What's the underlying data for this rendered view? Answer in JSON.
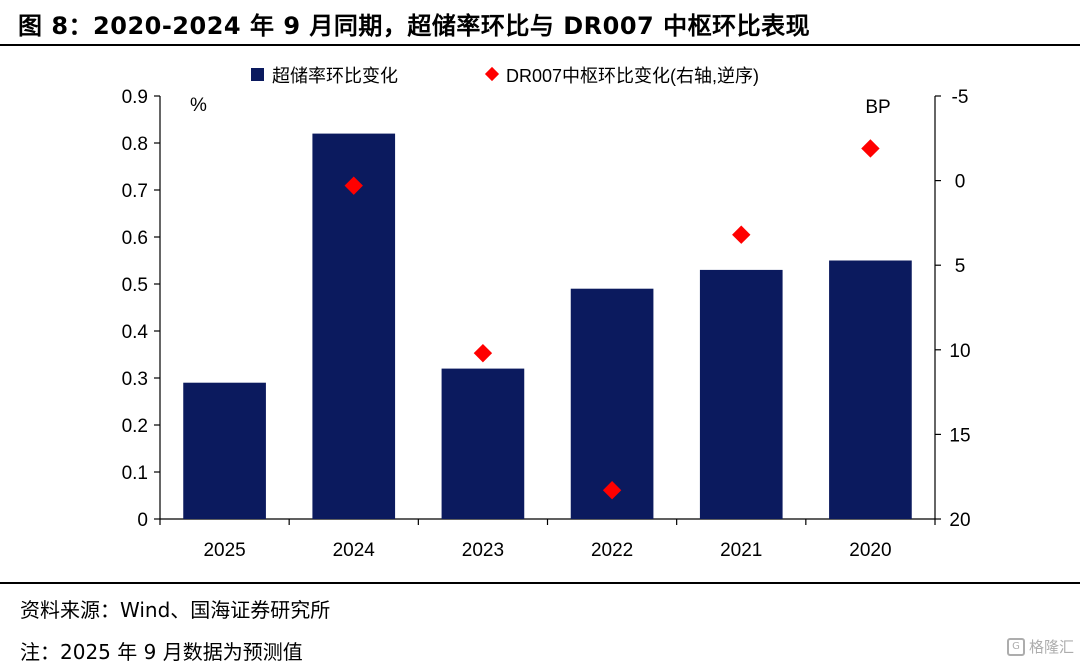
{
  "header": {
    "title": "图 8：2020-2024 年 9 月同期，超储率环比与 DR007 中枢环比表现"
  },
  "footer": {
    "source": "资料来源：Wind、国海证券研究所",
    "note": "注：2025 年 9 月数据为预测值",
    "watermark": "格隆汇"
  },
  "chart_data": {
    "type": "bar",
    "categories": [
      "2025",
      "2024",
      "2023",
      "2022",
      "2021",
      "2020"
    ],
    "series": [
      {
        "name": "超储率环比变化",
        "kind": "bar",
        "axis": "left",
        "values": [
          0.29,
          0.82,
          0.32,
          0.49,
          0.53,
          0.55
        ],
        "color": "#0b1a5e"
      },
      {
        "name": "DR007中枢环比变化(右轴,逆序)",
        "kind": "scatter",
        "axis": "right",
        "values": [
          null,
          0.3,
          10.2,
          18.3,
          3.2,
          -1.9
        ],
        "color": "#ff0000"
      }
    ],
    "y_left": {
      "unit": "%",
      "ylim": [
        0,
        0.9
      ],
      "ticks": [
        "0",
        "0.1",
        "0.2",
        "0.3",
        "0.4",
        "0.5",
        "0.6",
        "0.7",
        "0.8",
        "0.9"
      ]
    },
    "y_right": {
      "unit": "BP",
      "ylim": [
        -5,
        20
      ],
      "inverted": true,
      "ticks": [
        "-5",
        "0",
        "5",
        "10",
        "15",
        "20"
      ]
    },
    "legend_position": "top",
    "grid": false
  }
}
